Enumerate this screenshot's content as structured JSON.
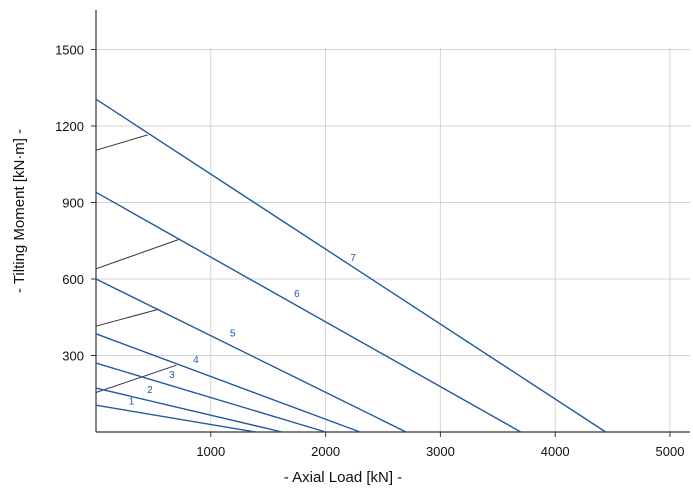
{
  "chart_data": {
    "type": "line",
    "title": "",
    "xlabel": "- Axial Load [kN] -",
    "ylabel": "- Tilting Moment [kN·m] -",
    "xlim": [
      0,
      5000
    ],
    "ylim": [
      0,
      1500
    ],
    "xticks": [
      1000,
      2000,
      3000,
      4000,
      5000
    ],
    "yticks": [
      300,
      600,
      900,
      1200,
      1500
    ],
    "grid": true,
    "legend": "none",
    "line_color": "#1f5aa0",
    "secondary_line_color": "#333333",
    "series": [
      {
        "name": "1",
        "label_pos": [
          310,
          107
        ],
        "points": [
          [
            0,
            105
          ],
          [
            1390,
            0
          ]
        ]
      },
      {
        "name": "2",
        "label_pos": [
          470,
          153
        ],
        "points": [
          [
            0,
            172
          ],
          [
            1620,
            0
          ]
        ]
      },
      {
        "name": "3",
        "label_pos": [
          660,
          212
        ],
        "points": [
          [
            0,
            270
          ],
          [
            2000,
            0
          ]
        ]
      },
      {
        "name": "4",
        "label_pos": [
          870,
          270
        ],
        "points": [
          [
            0,
            385
          ],
          [
            2300,
            0
          ]
        ]
      },
      {
        "name": "5",
        "label_pos": [
          1190,
          375
        ],
        "points": [
          [
            0,
            600
          ],
          [
            2700,
            0
          ]
        ]
      },
      {
        "name": "6",
        "label_pos": [
          1750,
          530
        ],
        "points": [
          [
            0,
            940
          ],
          [
            3700,
            0
          ]
        ]
      },
      {
        "name": "7",
        "label_pos": [
          2240,
          670
        ],
        "points": [
          [
            0,
            1305
          ],
          [
            4440,
            0
          ]
        ]
      }
    ],
    "connectors": [
      {
        "points": [
          [
            0,
            155
          ],
          [
            700,
            262
          ]
        ]
      },
      {
        "points": [
          [
            0,
            415
          ],
          [
            550,
            482
          ]
        ]
      },
      {
        "points": [
          [
            0,
            640
          ],
          [
            720,
            755
          ]
        ]
      },
      {
        "points": [
          [
            0,
            1105
          ],
          [
            450,
            1165
          ]
        ]
      }
    ]
  }
}
